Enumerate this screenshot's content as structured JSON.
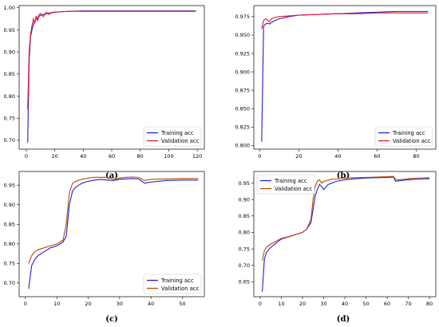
{
  "chart_data": [
    {
      "type": "line",
      "caption": "(a)",
      "xlim": [
        -5,
        125
      ],
      "ylim": [
        0.68,
        1.005
      ],
      "xticks": [
        0,
        20,
        40,
        60,
        80,
        100,
        120
      ],
      "yticks": [
        0.7,
        0.75,
        0.8,
        0.85,
        0.9,
        0.95,
        1.0
      ],
      "ytick_decimals": 2,
      "legend_position": "bottom-right",
      "series": [
        {
          "name": "Training acc",
          "color": "#1f1fcf",
          "x": [
            1,
            2,
            3,
            4,
            5,
            6,
            7,
            8,
            10,
            12,
            14,
            16,
            18,
            20,
            25,
            30,
            40,
            60,
            80,
            100,
            119
          ],
          "y": [
            0.695,
            0.88,
            0.935,
            0.95,
            0.962,
            0.97,
            0.975,
            0.978,
            0.983,
            0.985,
            0.986,
            0.988,
            0.989,
            0.99,
            0.991,
            0.992,
            0.993,
            0.993,
            0.993,
            0.993,
            0.993
          ]
        },
        {
          "name": "Validation acc",
          "color": "#e8102a",
          "x": [
            1,
            2,
            3,
            4,
            5,
            6,
            7,
            8,
            9,
            10,
            12,
            14,
            16,
            18,
            20,
            25,
            30,
            40,
            60,
            80,
            100,
            119
          ],
          "y": [
            0.77,
            0.9,
            0.94,
            0.96,
            0.975,
            0.965,
            0.982,
            0.97,
            0.985,
            0.987,
            0.98,
            0.99,
            0.985,
            0.99,
            0.99,
            0.991,
            0.992,
            0.992,
            0.992,
            0.992,
            0.992,
            0.992
          ]
        }
      ]
    },
    {
      "type": "line",
      "caption": "(b)",
      "xlim": [
        -3,
        90
      ],
      "ylim": [
        0.795,
        0.99
      ],
      "xticks": [
        0,
        20,
        40,
        60,
        80
      ],
      "yticks": [
        0.8,
        0.825,
        0.85,
        0.875,
        0.9,
        0.925,
        0.95,
        0.975
      ],
      "ytick_decimals": 3,
      "legend_position": "bottom-right",
      "series": [
        {
          "name": "Training acc",
          "color": "#1f1fcf",
          "x": [
            1,
            2,
            3,
            4,
            5,
            6,
            8,
            10,
            15,
            20,
            30,
            40,
            50,
            60,
            70,
            80,
            86
          ],
          "y": [
            0.805,
            0.962,
            0.965,
            0.966,
            0.965,
            0.967,
            0.97,
            0.972,
            0.975,
            0.977,
            0.978,
            0.979,
            0.98,
            0.981,
            0.982,
            0.982,
            0.982
          ]
        },
        {
          "name": "Validation acc",
          "color": "#e8102a",
          "x": [
            1,
            2,
            3,
            4,
            5,
            6,
            8,
            10,
            15,
            20,
            30,
            40,
            50,
            60,
            70,
            80,
            86
          ],
          "y": [
            0.958,
            0.97,
            0.972,
            0.97,
            0.968,
            0.972,
            0.974,
            0.975,
            0.976,
            0.977,
            0.978,
            0.979,
            0.979,
            0.98,
            0.98,
            0.98,
            0.98
          ]
        }
      ]
    },
    {
      "type": "line",
      "caption": "(c)",
      "xlim": [
        -2,
        57
      ],
      "ylim": [
        0.665,
        0.985
      ],
      "xticks": [
        0,
        10,
        20,
        30,
        40,
        50
      ],
      "yticks": [
        0.7,
        0.75,
        0.8,
        0.85,
        0.9,
        0.95
      ],
      "ytick_decimals": 2,
      "legend_position": "bottom-right",
      "series": [
        {
          "name": "Training acc",
          "color": "#1f1fcf",
          "x": [
            1,
            2,
            3,
            4,
            6,
            8,
            10,
            11,
            12,
            13,
            14,
            15,
            16,
            18,
            20,
            22,
            24,
            26,
            28,
            30,
            32,
            34,
            36,
            38,
            40,
            45,
            50,
            55
          ],
          "y": [
            0.685,
            0.745,
            0.76,
            0.77,
            0.78,
            0.79,
            0.795,
            0.8,
            0.805,
            0.82,
            0.9,
            0.935,
            0.945,
            0.955,
            0.96,
            0.963,
            0.965,
            0.963,
            0.962,
            0.965,
            0.966,
            0.967,
            0.966,
            0.955,
            0.958,
            0.962,
            0.963,
            0.963
          ]
        },
        {
          "name": "Validation acc",
          "color": "#b84a00",
          "x": [
            1,
            2,
            3,
            4,
            6,
            8,
            10,
            11,
            12,
            13,
            14,
            15,
            16,
            18,
            20,
            22,
            24,
            26,
            28,
            30,
            32,
            34,
            36,
            38,
            40,
            45,
            50,
            55
          ],
          "y": [
            0.75,
            0.77,
            0.78,
            0.785,
            0.79,
            0.795,
            0.8,
            0.805,
            0.81,
            0.85,
            0.93,
            0.955,
            0.96,
            0.965,
            0.968,
            0.97,
            0.97,
            0.97,
            0.965,
            0.968,
            0.97,
            0.971,
            0.97,
            0.962,
            0.965,
            0.966,
            0.967,
            0.967
          ]
        }
      ]
    },
    {
      "type": "line",
      "caption": "(d)",
      "xlim": [
        -3,
        83
      ],
      "ylim": [
        0.605,
        0.985
      ],
      "xticks": [
        0,
        10,
        20,
        30,
        40,
        50,
        60,
        70,
        80
      ],
      "yticks": [
        0.65,
        0.7,
        0.75,
        0.8,
        0.85,
        0.9,
        0.95
      ],
      "ytick_decimals": 2,
      "legend_position": "top-left",
      "series": [
        {
          "name": "Training acc",
          "color": "#1f1fcf",
          "x": [
            1,
            2,
            3,
            5,
            8,
            10,
            15,
            20,
            22,
            24,
            25,
            26,
            27,
            28,
            29,
            30,
            32,
            34,
            36,
            40,
            45,
            50,
            55,
            60,
            62,
            63,
            64,
            66,
            70,
            75,
            80
          ],
          "y": [
            0.62,
            0.72,
            0.74,
            0.755,
            0.77,
            0.78,
            0.79,
            0.8,
            0.81,
            0.83,
            0.87,
            0.91,
            0.93,
            0.945,
            0.94,
            0.93,
            0.945,
            0.95,
            0.955,
            0.96,
            0.963,
            0.965,
            0.966,
            0.967,
            0.968,
            0.968,
            0.955,
            0.957,
            0.96,
            0.962,
            0.963
          ]
        },
        {
          "name": "Validation acc",
          "color": "#b84a00",
          "x": [
            1,
            2,
            3,
            5,
            8,
            10,
            15,
            20,
            22,
            24,
            25,
            26,
            27,
            28,
            29,
            30,
            32,
            34,
            36,
            40,
            45,
            50,
            55,
            60,
            62,
            63,
            64,
            66,
            70,
            75,
            80
          ],
          "y": [
            0.715,
            0.745,
            0.755,
            0.765,
            0.775,
            0.782,
            0.79,
            0.8,
            0.81,
            0.84,
            0.9,
            0.94,
            0.955,
            0.96,
            0.95,
            0.955,
            0.958,
            0.962,
            0.962,
            0.965,
            0.966,
            0.967,
            0.968,
            0.969,
            0.97,
            0.97,
            0.96,
            0.96,
            0.963,
            0.965,
            0.966
          ]
        }
      ]
    }
  ]
}
